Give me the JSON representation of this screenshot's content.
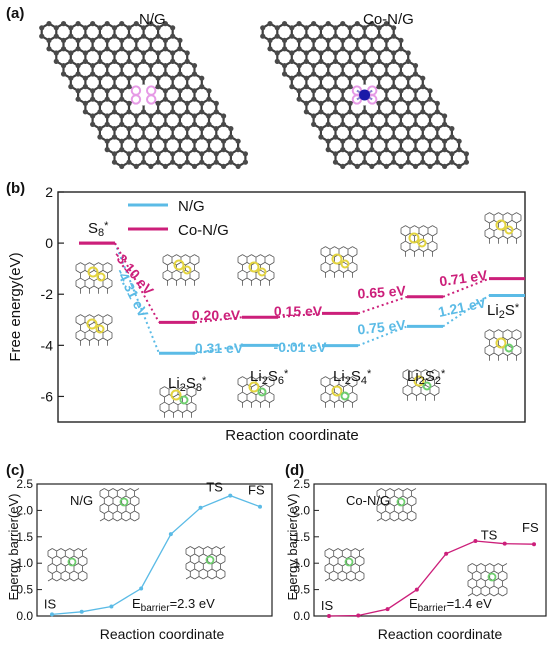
{
  "panel_labels": {
    "a": "(a)",
    "b": "(b)",
    "c": "(c)",
    "d": "(d)"
  },
  "panel_a": {
    "left_label": "N/G",
    "right_label": "Co-N/G"
  },
  "colors": {
    "ng": "#5bbbe6",
    "conG": "#cc1f7a",
    "carbon": "#4a4a4a",
    "nitrogen": "#e69ae6",
    "cobalt": "#1a1aa8",
    "axis": "#222222"
  },
  "chart_data": [
    {
      "id": "b",
      "type": "line",
      "xlabel": "Reaction coordinate",
      "ylabel": "Free energy(eV)",
      "ylim": [
        -7,
        2
      ],
      "yticks": [
        2,
        0,
        -2,
        -4,
        -6
      ],
      "legend_position": "top-left",
      "steps": [
        "S8*",
        "Li2S8*",
        "Li2S6*",
        "Li2S4*",
        "Li2S2*",
        "Li2S*"
      ],
      "series": [
        {
          "name": "N/G",
          "values": [
            0,
            -4.31,
            -4.0,
            -4.01,
            -3.26,
            -2.05
          ]
        },
        {
          "name": "Co-N/G",
          "values": [
            0,
            -3.1,
            -2.9,
            -2.75,
            -2.1,
            -1.39
          ]
        }
      ],
      "step_labels": [
        {
          "base": "S",
          "sub": "8",
          "sup": "*"
        },
        {
          "base": "Li",
          "sub": "2",
          "mid": "S",
          "sub2": "8",
          "sup": "*"
        },
        {
          "base": "Li",
          "sub": "2",
          "mid": "S",
          "sub2": "6",
          "sup": "*"
        },
        {
          "base": "Li",
          "sub": "2",
          "mid": "S",
          "sub2": "4",
          "sup": "*"
        },
        {
          "base": "Li",
          "sub": "2",
          "mid": "S",
          "sub2": "2",
          "sup": "*"
        },
        {
          "base": "Li",
          "sub": "2",
          "mid": "S",
          "sub2": "",
          "sup": "*"
        }
      ],
      "annotations_ng": [
        "-4.31 eV",
        "0.31 eV",
        "-0.01 eV",
        "0.75 eV",
        "1.21 eV"
      ],
      "annotations_conG": [
        "-3.10 eV",
        "0.20 eV",
        "0.15 eV",
        "0.65 eV",
        "0.71 eV"
      ]
    },
    {
      "id": "c",
      "type": "line",
      "xlabel": "Reaction coordinate",
      "ylabel": "Energy barrier(eV)",
      "ylim": [
        0,
        2.5
      ],
      "yticks": [
        0.0,
        0.5,
        1.0,
        1.5,
        2.0,
        2.5
      ],
      "panel_title": "N/G",
      "series": [
        {
          "values": [
            0.03,
            0.08,
            0.18,
            0.52,
            1.55,
            2.05,
            2.28,
            2.07
          ]
        }
      ],
      "labels": {
        "IS": "IS",
        "TS": "TS",
        "FS": "FS"
      },
      "barrier_text": {
        "prefix": "E",
        "sub": "barrier",
        "suffix": "=2.3 eV"
      }
    },
    {
      "id": "d",
      "type": "line",
      "xlabel": "Reaction coordinate",
      "ylabel": "Energy barrier(eV)",
      "ylim": [
        0,
        2.5
      ],
      "yticks": [
        0.0,
        0.5,
        1.0,
        1.5,
        2.0,
        2.5
      ],
      "panel_title": "Co-N/G",
      "series": [
        {
          "values": [
            0.0,
            0.01,
            0.13,
            0.5,
            1.18,
            1.42,
            1.37,
            1.36
          ]
        }
      ],
      "labels": {
        "IS": "IS",
        "TS": "TS",
        "FS": "FS"
      },
      "barrier_text": {
        "prefix": "E",
        "sub": "barrier",
        "suffix": "=1.4 eV"
      }
    }
  ]
}
